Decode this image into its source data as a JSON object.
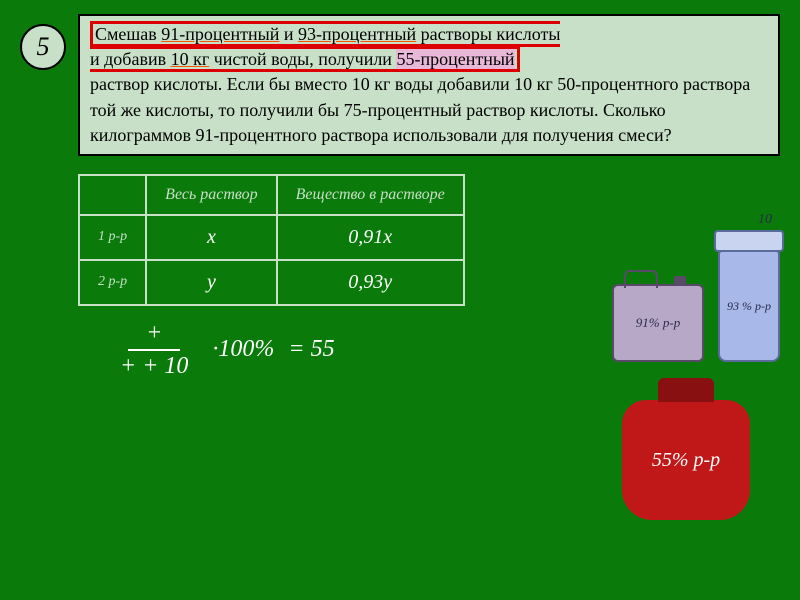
{
  "slide_number": "5",
  "problem": {
    "l1a": "Смешав ",
    "hl1": "91-процентный",
    "l1b": " и ",
    "hl2": "93-процентный",
    "l1c": " растворы кислоты",
    "l2a": "и добавив ",
    "hl3": "10 кг",
    "l2b": " чистой воды, получили ",
    "hl4": "55-процентный",
    "rest": "раствор кислоты. Если бы вместо 10 кг воды добавили 10 кг 50-процентного раствора той же кислоты, то получили бы 75-процентный раствор кислоты. Сколько килограммов 91-процентного раствора использовали для получения смеси?"
  },
  "table": {
    "h1": "Весь раствор",
    "h2": "Вещество в растворе",
    "r1lbl": "1 р-р",
    "r1c1": "x",
    "r1c2": "0,91x",
    "r2lbl": "2 р-р",
    "r2c1": "y",
    "r2c2": "0,93y"
  },
  "formula": {
    "num": "+",
    "den_plus": "+",
    "den_extra": " + 10",
    "mult": "·100%",
    "eq": "= 55"
  },
  "vessels": {
    "canister": "91% р-р",
    "beaker": "93 % р-р",
    "beaker_top": "10",
    "jar": "55% р-р"
  },
  "colors": {
    "bg": "#0a7a0a",
    "panel": "#c8dfc8",
    "redbox": "#d00000",
    "jar": "#c01818"
  }
}
